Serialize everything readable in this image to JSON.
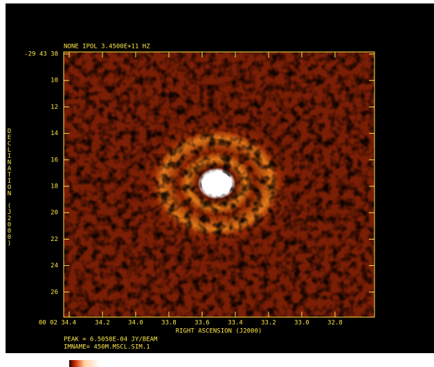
{
  "header": {
    "title": "NONE IPOL  3.4500E+11 HZ"
  },
  "axes": {
    "y_label": "DECLINATION (J2000)",
    "x_label": "RIGHT ASCENSION (J2000)",
    "y_ticks": [
      "-29 43 38",
      "10",
      "12",
      "14",
      "16",
      "18",
      "20",
      "22",
      "24",
      "26"
    ],
    "x_ticks": [
      "00 02 34.4",
      "34.2",
      "34.0",
      "33.8",
      "33.6",
      "33.4",
      "33.2",
      "33.0",
      "32.8"
    ]
  },
  "footer": {
    "peak": "PEAK =   6.5058E-04 JY/BEAM",
    "imname": "IMNAME= 450M.MSCL.SIM.1"
  }
}
